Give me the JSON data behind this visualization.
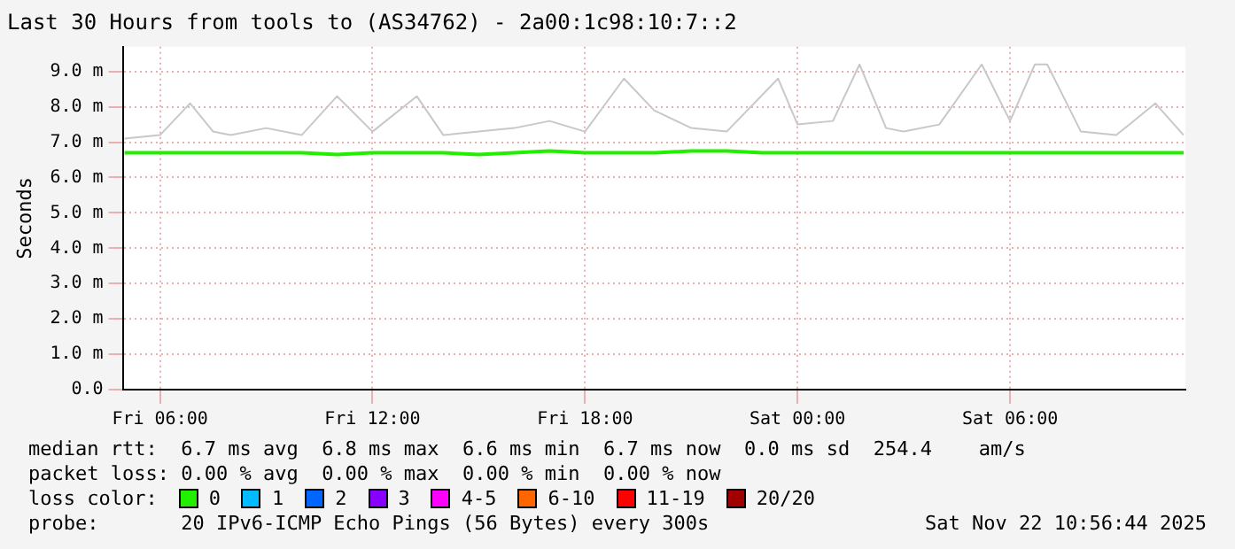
{
  "chart_data": {
    "type": "line",
    "title": "Last 30 Hours from tools to (AS34762) - 2a00:1c98:10:7::2",
    "ylabel": "Seconds",
    "xlim": [
      "2025-11-21T04:57",
      "2025-11-22T10:57"
    ],
    "ylim": [
      0,
      9.7
    ],
    "xticks": [
      {
        "value": "2025-11-21T06:00",
        "label": "Fri 06:00"
      },
      {
        "value": "2025-11-21T12:00",
        "label": "Fri 12:00"
      },
      {
        "value": "2025-11-21T18:00",
        "label": "Fri 18:00"
      },
      {
        "value": "2025-11-22T00:00",
        "label": "Sat 00:00"
      },
      {
        "value": "2025-11-22T06:00",
        "label": "Sat 06:00"
      }
    ],
    "yticks": [
      {
        "value": 0,
        "label": "0.0"
      },
      {
        "value": 1,
        "label": "1.0 m"
      },
      {
        "value": 2,
        "label": "2.0 m"
      },
      {
        "value": 3,
        "label": "3.0 m"
      },
      {
        "value": 4,
        "label": "4.0 m"
      },
      {
        "value": 5,
        "label": "5.0 m"
      },
      {
        "value": 6,
        "label": "6.0 m"
      },
      {
        "value": 7,
        "label": "7.0 m"
      },
      {
        "value": 8,
        "label": "8.0 m"
      },
      {
        "value": 9,
        "label": "9.0 m"
      }
    ],
    "grid": true,
    "legend": "bottom left",
    "legend_title": "loss color:",
    "marker": "none",
    "line_style": "solid",
    "series": [
      {
        "color": "#c8c8c8",
        "x": [
          "2025-11-21T05:00",
          "2025-11-21T06:00",
          "2025-11-21T06:51",
          "2025-11-21T07:30",
          "2025-11-21T08:00",
          "2025-11-21T09:00",
          "2025-11-21T10:00",
          "2025-11-21T11:00",
          "2025-11-21T12:00",
          "2025-11-21T13:15",
          "2025-11-21T14:00",
          "2025-11-21T15:00",
          "2025-11-21T16:00",
          "2025-11-21T17:00",
          "2025-11-21T18:00",
          "2025-11-21T19:06",
          "2025-11-21T19:57",
          "2025-11-21T21:00",
          "2025-11-21T22:00",
          "2025-11-21T23:27",
          "2025-11-22T00:00",
          "2025-11-22T01:00",
          "2025-11-22T01:45",
          "2025-11-22T02:30",
          "2025-11-22T03:00",
          "2025-11-22T04:00",
          "2025-11-22T05:12",
          "2025-11-22T06:00",
          "2025-11-22T06:42",
          "2025-11-22T07:03",
          "2025-11-22T08:00",
          "2025-11-22T09:00",
          "2025-11-22T10:06",
          "2025-11-22T10:54"
        ],
        "values": [
          7.1,
          7.2,
          8.1,
          7.3,
          7.2,
          7.4,
          7.2,
          8.3,
          7.3,
          8.3,
          7.2,
          7.3,
          7.4,
          7.6,
          7.3,
          8.8,
          7.9,
          7.4,
          7.3,
          8.8,
          7.5,
          7.6,
          9.2,
          7.4,
          7.3,
          7.5,
          9.2,
          7.6,
          9.2,
          9.2,
          7.3,
          7.2,
          8.1,
          7.2
        ]
      },
      {
        "name": "0",
        "color": "#22ee00",
        "x": [
          "2025-11-21T05:00",
          "2025-11-21T06:00",
          "2025-11-21T07:00",
          "2025-11-21T08:00",
          "2025-11-21T09:00",
          "2025-11-21T10:00",
          "2025-11-21T11:00",
          "2025-11-21T12:00",
          "2025-11-21T13:00",
          "2025-11-21T14:00",
          "2025-11-21T15:00",
          "2025-11-21T16:00",
          "2025-11-21T17:00",
          "2025-11-21T18:00",
          "2025-11-21T19:00",
          "2025-11-21T20:00",
          "2025-11-21T21:00",
          "2025-11-21T22:00",
          "2025-11-21T23:00",
          "2025-11-22T00:00",
          "2025-11-22T01:00",
          "2025-11-22T02:00",
          "2025-11-22T03:00",
          "2025-11-22T04:00",
          "2025-11-22T05:00",
          "2025-11-22T06:00",
          "2025-11-22T07:00",
          "2025-11-22T08:00",
          "2025-11-22T09:00",
          "2025-11-22T10:00",
          "2025-11-22T10:54"
        ],
        "values": [
          6.7,
          6.7,
          6.7,
          6.7,
          6.7,
          6.7,
          6.65,
          6.7,
          6.7,
          6.7,
          6.65,
          6.7,
          6.75,
          6.7,
          6.7,
          6.7,
          6.75,
          6.75,
          6.7,
          6.7,
          6.7,
          6.7,
          6.7,
          6.7,
          6.7,
          6.7,
          6.7,
          6.7,
          6.7,
          6.7,
          6.7
        ]
      },
      {
        "name": "1",
        "color": "#00bbff"
      },
      {
        "name": "2",
        "color": "#0066ff"
      },
      {
        "name": "3",
        "color": "#8800ff"
      },
      {
        "name": "4-5",
        "color": "#ff00ff"
      },
      {
        "name": "6-10",
        "color": "#ff6600"
      },
      {
        "name": "11-19",
        "color": "#ff0000"
      },
      {
        "name": "20/20",
        "color": "#a00000"
      }
    ],
    "annotations": [
      "median rtt:  6.7 ms avg  6.8 ms max  6.6 ms min  6.7 ms now  0.0 ms sd  254.4    am/s",
      "packet loss: 0.00 % avg  0.00 % max  0.00 % min  0.00 % now",
      "probe:       20 IPv6-ICMP Echo Pings (56 Bytes) every 300s",
      "Sat Nov 22 10:56:44 2025"
    ]
  }
}
